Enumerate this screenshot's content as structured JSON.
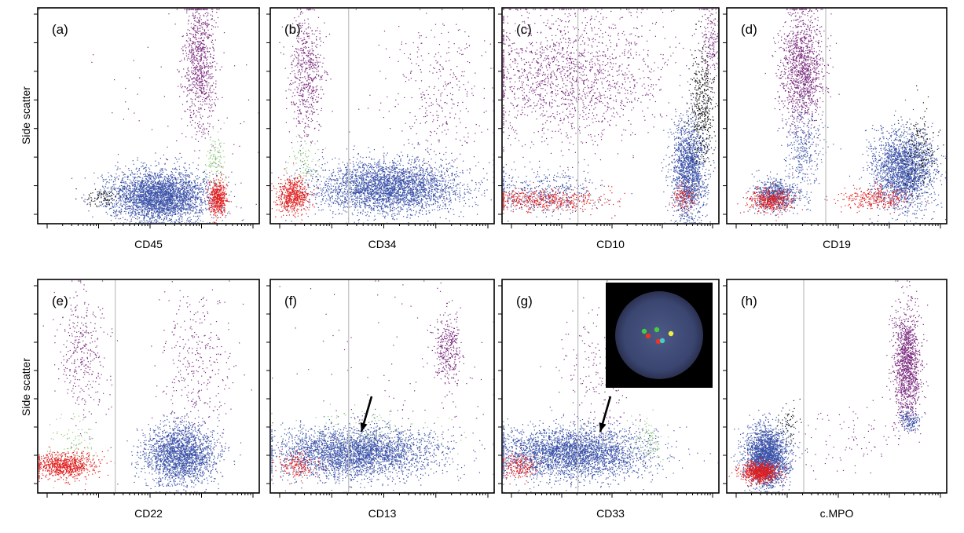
{
  "y_label": "Side scatter",
  "colors": {
    "blue": "#3a52a8",
    "purple": "#7a2a7e",
    "red": "#e21d1d",
    "green": "#8cc67a",
    "black": "#111111",
    "gate_line": "#bfbfbf",
    "axis": "#000000"
  },
  "chart_data": [
    {
      "type": "scatter",
      "panel": "(a)",
      "xlabel": "CD45",
      "ylabel": "Side scatter",
      "grid": false,
      "gate_line": null,
      "clusters": [
        {
          "color": "purple",
          "cx": 0.73,
          "cy": 0.74,
          "sx": 0.035,
          "sy": 0.16,
          "n": 900
        },
        {
          "color": "blue",
          "cx": 0.55,
          "cy": 0.13,
          "sx": 0.11,
          "sy": 0.06,
          "n": 3200
        },
        {
          "color": "green",
          "cx": 0.8,
          "cy": 0.3,
          "sx": 0.025,
          "sy": 0.06,
          "n": 120
        },
        {
          "color": "red",
          "cx": 0.81,
          "cy": 0.12,
          "sx": 0.02,
          "sy": 0.04,
          "n": 500
        },
        {
          "color": "black",
          "cx": 0.28,
          "cy": 0.12,
          "sx": 0.04,
          "sy": 0.02,
          "n": 90
        },
        {
          "color": "purple",
          "cx": 0.6,
          "cy": 0.45,
          "sx": 0.25,
          "sy": 0.25,
          "n": 60
        }
      ]
    },
    {
      "type": "scatter",
      "panel": "(b)",
      "xlabel": "CD34",
      "ylabel": "",
      "grid": false,
      "gate_line": 0.35,
      "clusters": [
        {
          "color": "purple",
          "cx": 0.16,
          "cy": 0.7,
          "sx": 0.04,
          "sy": 0.15,
          "n": 600
        },
        {
          "color": "purple",
          "cx": 0.75,
          "cy": 0.6,
          "sx": 0.12,
          "sy": 0.18,
          "n": 350
        },
        {
          "color": "blue",
          "cx": 0.52,
          "cy": 0.17,
          "sx": 0.16,
          "sy": 0.06,
          "n": 3200
        },
        {
          "color": "green",
          "cx": 0.15,
          "cy": 0.3,
          "sx": 0.04,
          "sy": 0.05,
          "n": 90
        },
        {
          "color": "red",
          "cx": 0.1,
          "cy": 0.13,
          "sx": 0.035,
          "sy": 0.04,
          "n": 600
        }
      ]
    },
    {
      "type": "scatter",
      "panel": "(c)",
      "xlabel": "CD10",
      "ylabel": "",
      "grid": false,
      "gate_line": 0.35,
      "clusters": [
        {
          "color": "purple",
          "cx": 0.3,
          "cy": 0.7,
          "sx": 0.22,
          "sy": 0.16,
          "n": 1700
        },
        {
          "color": "blue",
          "cx": 0.86,
          "cy": 0.25,
          "sx": 0.04,
          "sy": 0.12,
          "n": 1600
        },
        {
          "color": "black",
          "cx": 0.92,
          "cy": 0.55,
          "sx": 0.03,
          "sy": 0.14,
          "n": 450
        },
        {
          "color": "purple",
          "cx": 0.96,
          "cy": 0.85,
          "sx": 0.02,
          "sy": 0.09,
          "n": 160
        },
        {
          "color": "blue",
          "cx": 0.18,
          "cy": 0.15,
          "sx": 0.14,
          "sy": 0.05,
          "n": 500
        },
        {
          "color": "red",
          "cx": 0.2,
          "cy": 0.11,
          "sx": 0.15,
          "sy": 0.025,
          "n": 500
        },
        {
          "color": "red",
          "cx": 0.84,
          "cy": 0.12,
          "sx": 0.025,
          "sy": 0.03,
          "n": 120
        }
      ]
    },
    {
      "type": "scatter",
      "panel": "(d)",
      "xlabel": "CD19",
      "ylabel": "",
      "grid": false,
      "gate_line": 0.45,
      "clusters": [
        {
          "color": "purple",
          "cx": 0.34,
          "cy": 0.72,
          "sx": 0.05,
          "sy": 0.14,
          "n": 1300
        },
        {
          "color": "blue",
          "cx": 0.35,
          "cy": 0.35,
          "sx": 0.04,
          "sy": 0.12,
          "n": 350
        },
        {
          "color": "blue",
          "cx": 0.22,
          "cy": 0.14,
          "sx": 0.05,
          "sy": 0.04,
          "n": 650
        },
        {
          "color": "red",
          "cx": 0.2,
          "cy": 0.11,
          "sx": 0.05,
          "sy": 0.025,
          "n": 450
        },
        {
          "color": "blue",
          "cx": 0.8,
          "cy": 0.25,
          "sx": 0.07,
          "sy": 0.09,
          "n": 2200
        },
        {
          "color": "black",
          "cx": 0.87,
          "cy": 0.35,
          "sx": 0.04,
          "sy": 0.1,
          "n": 180
        },
        {
          "color": "red",
          "cx": 0.68,
          "cy": 0.12,
          "sx": 0.08,
          "sy": 0.025,
          "n": 300
        }
      ]
    },
    {
      "type": "scatter",
      "panel": "(e)",
      "xlabel": "CD22",
      "ylabel": "Side scatter",
      "grid": false,
      "gate_line": 0.35,
      "clusters": [
        {
          "color": "purple",
          "cx": 0.2,
          "cy": 0.65,
          "sx": 0.06,
          "sy": 0.15,
          "n": 350
        },
        {
          "color": "purple",
          "cx": 0.72,
          "cy": 0.6,
          "sx": 0.08,
          "sy": 0.18,
          "n": 350
        },
        {
          "color": "blue",
          "cx": 0.64,
          "cy": 0.18,
          "sx": 0.08,
          "sy": 0.07,
          "n": 2100
        },
        {
          "color": "green",
          "cx": 0.15,
          "cy": 0.25,
          "sx": 0.06,
          "sy": 0.06,
          "n": 90
        },
        {
          "color": "red",
          "cx": 0.12,
          "cy": 0.13,
          "sx": 0.07,
          "sy": 0.03,
          "n": 800
        }
      ]
    },
    {
      "type": "scatter",
      "panel": "(f)",
      "xlabel": "CD13",
      "ylabel": "",
      "grid": false,
      "gate_line": 0.35,
      "clusters": [
        {
          "color": "purple",
          "cx": 0.79,
          "cy": 0.67,
          "sx": 0.03,
          "sy": 0.09,
          "n": 350
        },
        {
          "color": "blue",
          "cx": 0.38,
          "cy": 0.19,
          "sx": 0.18,
          "sy": 0.06,
          "n": 3200
        },
        {
          "color": "green",
          "cx": 0.45,
          "cy": 0.3,
          "sx": 0.2,
          "sy": 0.05,
          "n": 110
        },
        {
          "color": "red",
          "cx": 0.12,
          "cy": 0.13,
          "sx": 0.05,
          "sy": 0.03,
          "n": 180
        },
        {
          "color": "purple",
          "cx": 0.55,
          "cy": 0.55,
          "sx": 0.25,
          "sy": 0.25,
          "n": 90
        }
      ]
    },
    {
      "type": "scatter",
      "panel": "(g)",
      "xlabel": "CD33",
      "ylabel": "",
      "grid": false,
      "gate_line": 0.35,
      "clusters": [
        {
          "color": "purple",
          "cx": 0.45,
          "cy": 0.55,
          "sx": 0.1,
          "sy": 0.18,
          "n": 220
        },
        {
          "color": "blue",
          "cx": 0.32,
          "cy": 0.19,
          "sx": 0.18,
          "sy": 0.06,
          "n": 3200
        },
        {
          "color": "green",
          "cx": 0.67,
          "cy": 0.25,
          "sx": 0.04,
          "sy": 0.05,
          "n": 90
        },
        {
          "color": "red",
          "cx": 0.08,
          "cy": 0.13,
          "sx": 0.04,
          "sy": 0.03,
          "n": 200
        }
      ]
    },
    {
      "type": "scatter",
      "panel": "(h)",
      "xlabel": "c.MPO",
      "ylabel": "",
      "grid": false,
      "gate_line": 0.35,
      "clusters": [
        {
          "color": "purple",
          "cx": 0.82,
          "cy": 0.6,
          "sx": 0.03,
          "sy": 0.13,
          "n": 1300
        },
        {
          "color": "blue",
          "cx": 0.83,
          "cy": 0.34,
          "sx": 0.025,
          "sy": 0.03,
          "n": 160
        },
        {
          "color": "blue",
          "cx": 0.18,
          "cy": 0.17,
          "sx": 0.05,
          "sy": 0.07,
          "n": 2400
        },
        {
          "color": "red",
          "cx": 0.15,
          "cy": 0.1,
          "sx": 0.04,
          "sy": 0.025,
          "n": 800
        },
        {
          "color": "black",
          "cx": 0.28,
          "cy": 0.32,
          "sx": 0.03,
          "sy": 0.05,
          "n": 60
        },
        {
          "color": "purple",
          "cx": 0.55,
          "cy": 0.25,
          "sx": 0.12,
          "sy": 0.08,
          "n": 90
        }
      ]
    }
  ]
}
